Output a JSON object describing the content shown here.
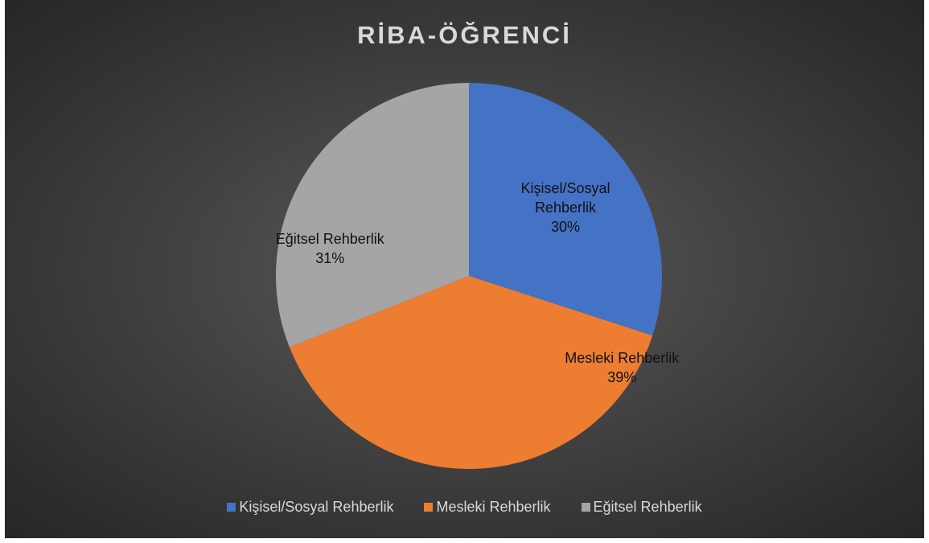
{
  "chart_data": {
    "type": "pie",
    "title": "RİBA-ÖĞRENCİ",
    "categories": [
      "Kişisel/Sosyal Rehberlik",
      "Mesleki Rehberlik",
      "Eğitsel Rehberlik"
    ],
    "values": [
      30,
      39,
      31
    ],
    "value_labels": [
      "30%",
      "39%",
      "31%"
    ],
    "colors": [
      "#4472c4",
      "#ed7d31",
      "#a5a5a5"
    ],
    "legend": "bottom"
  }
}
